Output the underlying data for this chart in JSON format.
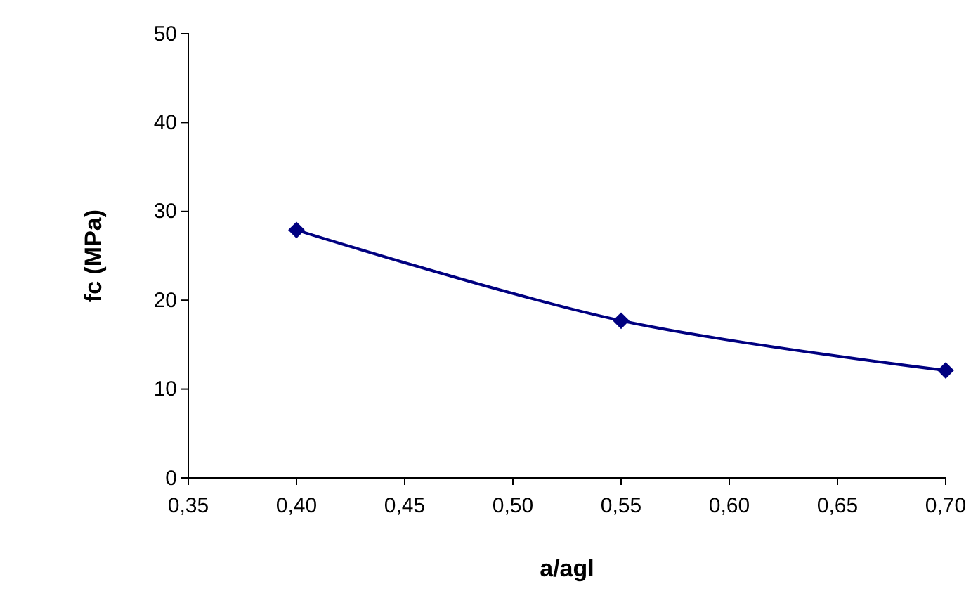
{
  "chart_data": {
    "type": "line",
    "xlabel": "a/agl",
    "ylabel": "fc (MPa)",
    "x": [
      0.4,
      0.55,
      0.7
    ],
    "series": [
      {
        "color": "#000080",
        "values": [
          27.9,
          17.7,
          12.1
        ]
      }
    ],
    "xlim": [
      0.35,
      0.7
    ],
    "xticks": [
      {
        "value": 0.35,
        "label": "0,35"
      },
      {
        "value": 0.4,
        "label": "0,40"
      },
      {
        "value": 0.45,
        "label": "0,45"
      },
      {
        "value": 0.5,
        "label": "0,50"
      },
      {
        "value": 0.55,
        "label": "0,55"
      },
      {
        "value": 0.6,
        "label": "0,60"
      },
      {
        "value": 0.65,
        "label": "0,65"
      },
      {
        "value": 0.7,
        "label": "0,70"
      }
    ],
    "ylim": [
      0,
      50
    ],
    "yticks": [
      0,
      10,
      20,
      30,
      40,
      50
    ],
    "grid": false,
    "marker": "diamond",
    "line_style": "solid"
  }
}
